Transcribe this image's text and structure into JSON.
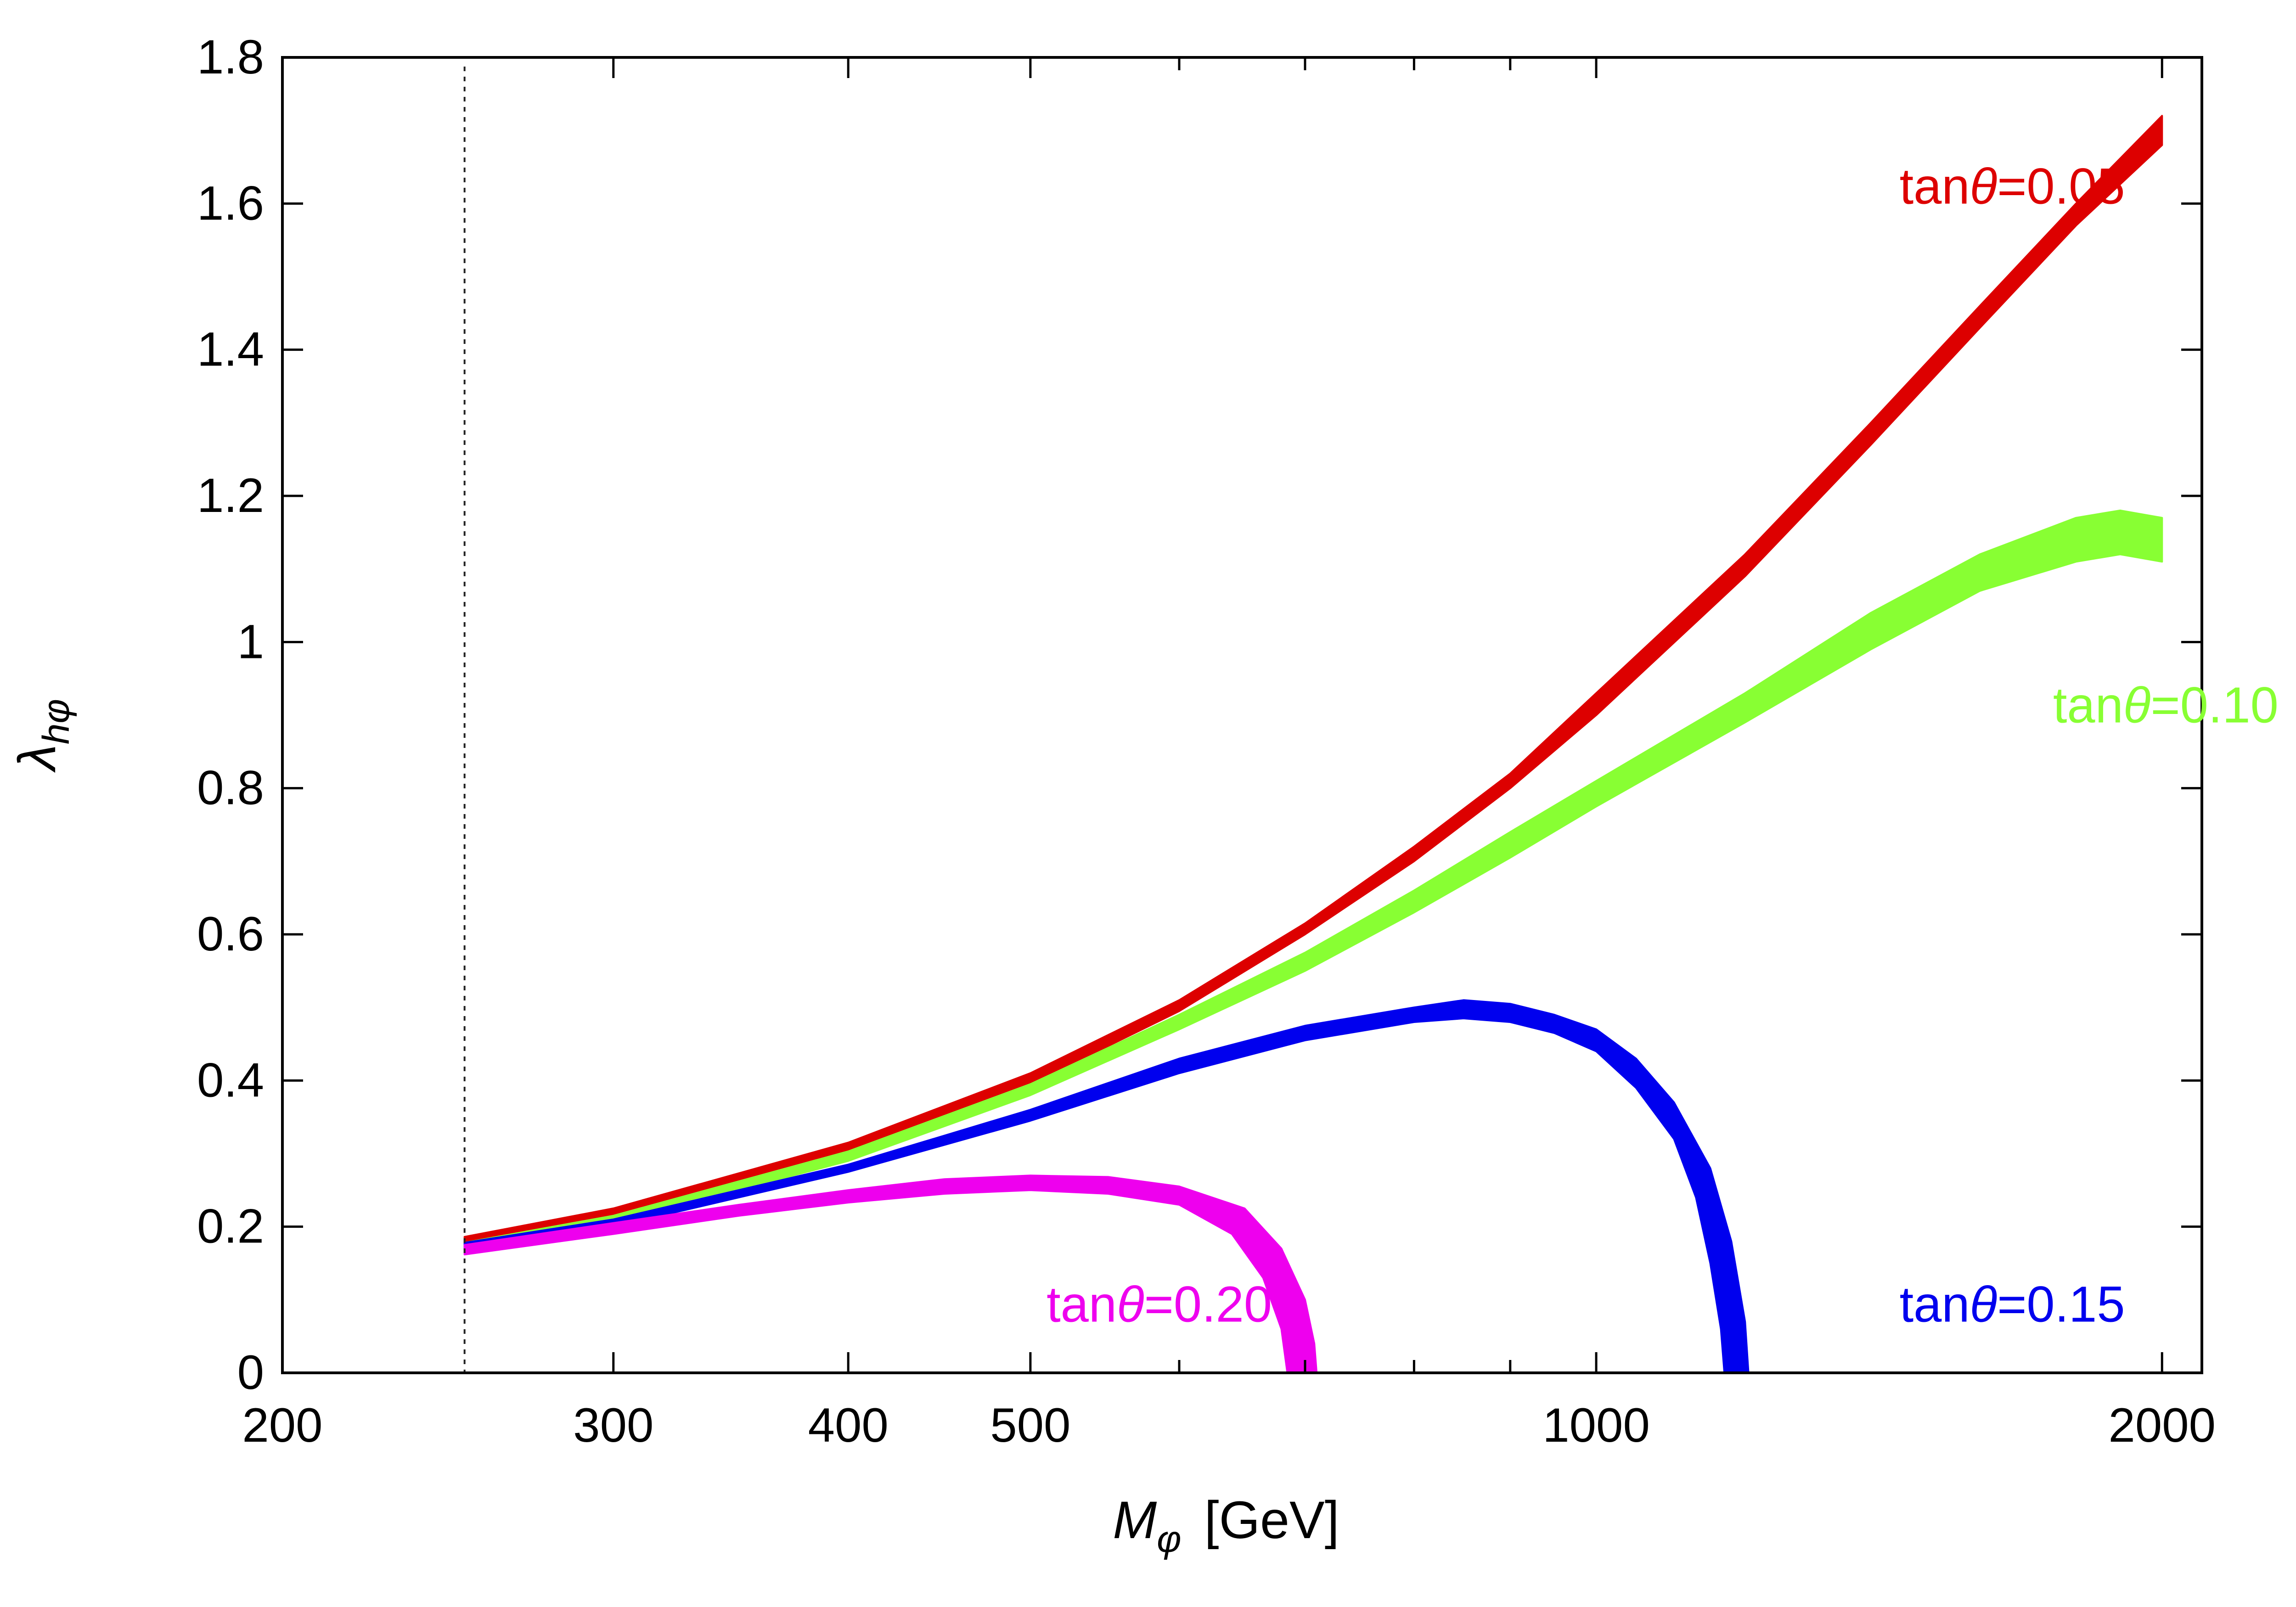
{
  "chart_data": {
    "type": "area",
    "xlabel": {
      "main": "M",
      "sub": "φ",
      "unit": "[GeV]"
    },
    "ylabel": {
      "main": "λ",
      "sub": "hφ"
    },
    "xscale": "log",
    "xlim": [
      200,
      2100
    ],
    "ylim": [
      0,
      1.8
    ],
    "x_ticks": [
      {
        "value": 200,
        "label": "200"
      },
      {
        "value": 300,
        "label": "300"
      },
      {
        "value": 400,
        "label": "400"
      },
      {
        "value": 500,
        "label": "500"
      },
      {
        "value": 1000,
        "label": "1000"
      },
      {
        "value": 2000,
        "label": "2000"
      }
    ],
    "x_minor_ticks": [
      600,
      700,
      800,
      900
    ],
    "y_ticks": [
      {
        "value": 0,
        "label": "0"
      },
      {
        "value": 0.2,
        "label": "0.2"
      },
      {
        "value": 0.4,
        "label": "0.4"
      },
      {
        "value": 0.6,
        "label": "0.6"
      },
      {
        "value": 0.8,
        "label": "0.8"
      },
      {
        "value": 1,
        "label": "1"
      },
      {
        "value": 1.2,
        "label": "1.2"
      },
      {
        "value": 1.4,
        "label": "1.4"
      },
      {
        "value": 1.6,
        "label": "1.6"
      },
      {
        "value": 1.8,
        "label": "1.8"
      }
    ],
    "reference_line": {
      "x": 250,
      "style": "dotted"
    },
    "series": [
      {
        "name": "tanθ=0.05",
        "label": {
          "prefix": "tan",
          "symbol": "θ",
          "value": "=0.05"
        },
        "color": "#dd0000",
        "label_anchor": [
          1450,
          1.6
        ],
        "width": 0.025,
        "upper": [
          [
            250,
            0.186
          ],
          [
            300,
            0.225
          ],
          [
            400,
            0.315
          ],
          [
            500,
            0.41
          ],
          [
            600,
            0.51
          ],
          [
            700,
            0.615
          ],
          [
            800,
            0.72
          ],
          [
            900,
            0.82
          ],
          [
            1000,
            0.93
          ],
          [
            1200,
            1.12
          ],
          [
            1400,
            1.3
          ],
          [
            1600,
            1.46
          ],
          [
            1800,
            1.6
          ],
          [
            2000,
            1.72
          ]
        ],
        "lower": [
          [
            250,
            0.176
          ],
          [
            300,
            0.215
          ],
          [
            400,
            0.305
          ],
          [
            500,
            0.395
          ],
          [
            600,
            0.495
          ],
          [
            700,
            0.6
          ],
          [
            800,
            0.7
          ],
          [
            900,
            0.8
          ],
          [
            1000,
            0.9
          ],
          [
            1200,
            1.09
          ],
          [
            1400,
            1.27
          ],
          [
            1600,
            1.43
          ],
          [
            1800,
            1.57
          ],
          [
            2000,
            1.68
          ]
        ]
      },
      {
        "name": "tanθ=0.10",
        "label": {
          "prefix": "tan",
          "symbol": "θ",
          "value": "=0.10"
        },
        "color": "#88ff33",
        "label_anchor": [
          1750,
          0.89
        ],
        "upper": [
          [
            250,
            0.178
          ],
          [
            300,
            0.215
          ],
          [
            400,
            0.303
          ],
          [
            500,
            0.395
          ],
          [
            600,
            0.49
          ],
          [
            700,
            0.575
          ],
          [
            800,
            0.66
          ],
          [
            900,
            0.74
          ],
          [
            1000,
            0.81
          ],
          [
            1200,
            0.93
          ],
          [
            1400,
            1.04
          ],
          [
            1600,
            1.12
          ],
          [
            1800,
            1.17
          ],
          [
            1900,
            1.18
          ],
          [
            2000,
            1.17
          ]
        ],
        "lower": [
          [
            250,
            0.17
          ],
          [
            300,
            0.205
          ],
          [
            400,
            0.29
          ],
          [
            500,
            0.38
          ],
          [
            600,
            0.47
          ],
          [
            700,
            0.55
          ],
          [
            800,
            0.63
          ],
          [
            900,
            0.705
          ],
          [
            1000,
            0.775
          ],
          [
            1200,
            0.89
          ],
          [
            1400,
            0.99
          ],
          [
            1600,
            1.07
          ],
          [
            1800,
            1.11
          ],
          [
            1900,
            1.12
          ],
          [
            2000,
            1.11
          ]
        ]
      },
      {
        "name": "tanθ=0.15",
        "label": {
          "prefix": "tan",
          "symbol": "θ",
          "value": "=0.15"
        },
        "color": "#0000ee",
        "label_anchor": [
          1450,
          0.07
        ],
        "upper": [
          [
            250,
            0.178
          ],
          [
            300,
            0.21
          ],
          [
            400,
            0.285
          ],
          [
            500,
            0.36
          ],
          [
            600,
            0.43
          ],
          [
            700,
            0.475
          ],
          [
            800,
            0.5
          ],
          [
            850,
            0.51
          ],
          [
            900,
            0.505
          ],
          [
            950,
            0.49
          ],
          [
            1000,
            0.47
          ],
          [
            1050,
            0.43
          ],
          [
            1100,
            0.37
          ],
          [
            1150,
            0.28
          ],
          [
            1180,
            0.18
          ],
          [
            1200,
            0.07
          ],
          [
            1205,
            0
          ]
        ],
        "lower": [
          [
            250,
            0.168
          ],
          [
            300,
            0.2
          ],
          [
            400,
            0.275
          ],
          [
            500,
            0.345
          ],
          [
            600,
            0.41
          ],
          [
            700,
            0.455
          ],
          [
            800,
            0.48
          ],
          [
            850,
            0.485
          ],
          [
            900,
            0.48
          ],
          [
            950,
            0.465
          ],
          [
            1000,
            0.44
          ],
          [
            1050,
            0.39
          ],
          [
            1100,
            0.32
          ],
          [
            1130,
            0.24
          ],
          [
            1150,
            0.15
          ],
          [
            1165,
            0.06
          ],
          [
            1170,
            0
          ]
        ]
      },
      {
        "name": "tanθ=0.20",
        "label": {
          "prefix": "tan",
          "symbol": "θ",
          "value": "=0.20"
        },
        "color": "#ee00ee",
        "label_anchor": [
          510,
          0.07
        ],
        "upper": [
          [
            250,
            0.175
          ],
          [
            300,
            0.205
          ],
          [
            350,
            0.23
          ],
          [
            400,
            0.25
          ],
          [
            450,
            0.265
          ],
          [
            500,
            0.27
          ],
          [
            550,
            0.268
          ],
          [
            600,
            0.255
          ],
          [
            650,
            0.225
          ],
          [
            680,
            0.17
          ],
          [
            700,
            0.1
          ],
          [
            708,
            0.04
          ],
          [
            710,
            0
          ]
        ],
        "lower": [
          [
            250,
            0.162
          ],
          [
            300,
            0.19
          ],
          [
            350,
            0.215
          ],
          [
            400,
            0.233
          ],
          [
            450,
            0.245
          ],
          [
            500,
            0.25
          ],
          [
            550,
            0.245
          ],
          [
            600,
            0.23
          ],
          [
            640,
            0.19
          ],
          [
            665,
            0.13
          ],
          [
            680,
            0.06
          ],
          [
            685,
            0
          ]
        ]
      }
    ]
  }
}
